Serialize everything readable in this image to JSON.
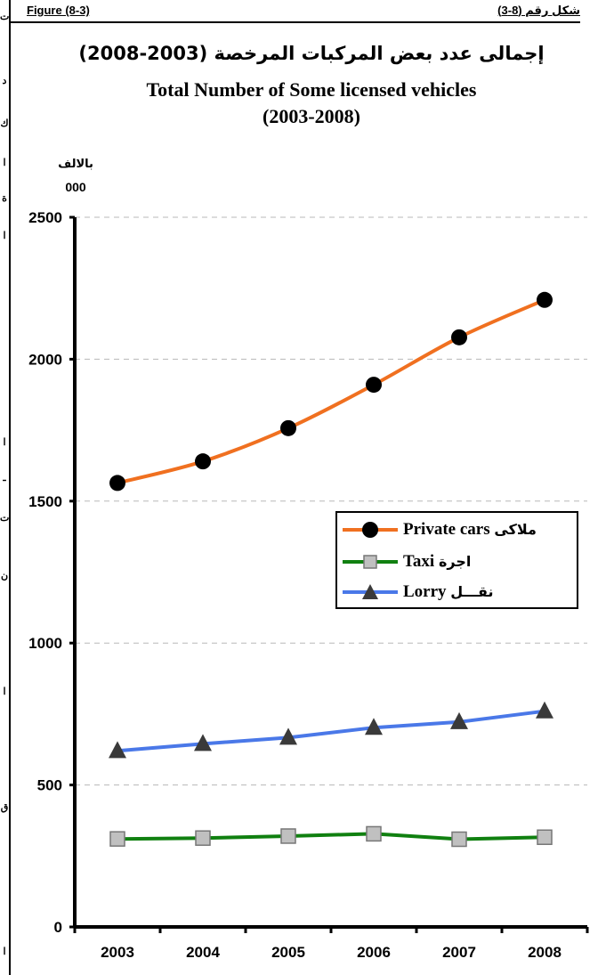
{
  "header": {
    "figure_en": "Figure (8-3)",
    "figure_ar": "شكل رقم (8-3)"
  },
  "titles": {
    "ar": "إجمالى عدد بعض المركبات المرخصة (2003-2008)",
    "en": "Total Number of Some licensed vehicles",
    "years": "(2003-2008)"
  },
  "unit": {
    "ar": "بالالف",
    "num": "000"
  },
  "colors": {
    "private": "#f07020",
    "taxi": "#108010",
    "lorry": "#4a78e8",
    "marker_dark": "#000000",
    "marker_taxi": "#c0c0c0",
    "marker_lorry": "#3a3a3a",
    "grid": "#b8b8b8"
  },
  "chart_data": {
    "type": "line",
    "categories": [
      "2003",
      "2004",
      "2005",
      "2006",
      "2007",
      "2008"
    ],
    "ylim": [
      0,
      2500
    ],
    "yticks": [
      0,
      500,
      1000,
      1500,
      2000,
      2500
    ],
    "grid": true,
    "legend_position": "right",
    "series": [
      {
        "key": "private",
        "name_en": "Private cars",
        "name_ar": "ملاكى",
        "marker": "circle",
        "values": [
          1564,
          1640,
          1757,
          1910,
          2077,
          2209
        ]
      },
      {
        "key": "taxi",
        "name_en": "Taxi",
        "name_ar": "اجرة",
        "marker": "square",
        "values": [
          310,
          313,
          320,
          328,
          309,
          316
        ]
      },
      {
        "key": "lorry",
        "name_en": "Lorry",
        "name_ar": "نقـــل",
        "marker": "triangle",
        "values": [
          620,
          645,
          667,
          702,
          722,
          760
        ]
      }
    ]
  },
  "edge_glyphs": [
    "ت",
    "د",
    "ك",
    "ا",
    "ة",
    "ا",
    "ا",
    "ـ",
    "ت",
    "ن",
    "ا",
    "ق",
    "ا"
  ]
}
